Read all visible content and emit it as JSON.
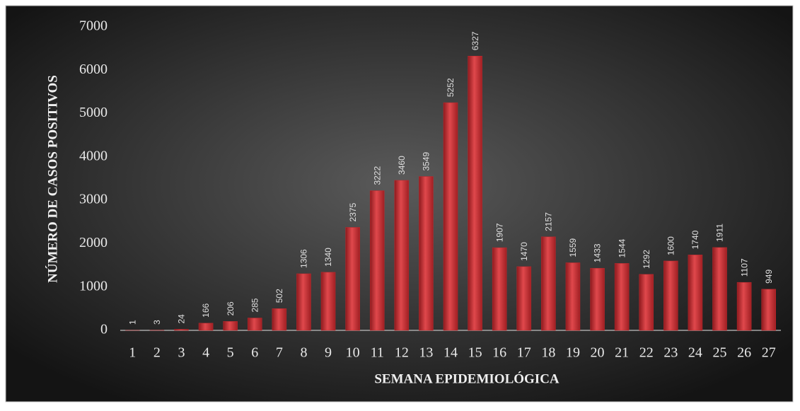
{
  "chart_data": {
    "type": "bar",
    "x_label": "SEMANA EPIDEMIOLÓGICA",
    "y_label": "NÚMERO DE CASOS POSITIVOS",
    "categories": [
      "1",
      "2",
      "3",
      "4",
      "5",
      "6",
      "7",
      "8",
      "9",
      "10",
      "11",
      "12",
      "13",
      "14",
      "15",
      "16",
      "17",
      "18",
      "19",
      "20",
      "21",
      "22",
      "23",
      "24",
      "25",
      "26",
      "27"
    ],
    "values": [
      1,
      3,
      24,
      166,
      206,
      285,
      502,
      1306,
      1340,
      2375,
      3222,
      3460,
      3549,
      5252,
      6327,
      1907,
      1470,
      2157,
      1559,
      1433,
      1544,
      1292,
      1600,
      1740,
      1911,
      1107,
      949
    ],
    "color": "#c0282d",
    "ylim": [
      0,
      7000
    ],
    "yticks": [
      0,
      1000,
      2000,
      3000,
      4000,
      5000,
      6000,
      7000
    ]
  }
}
